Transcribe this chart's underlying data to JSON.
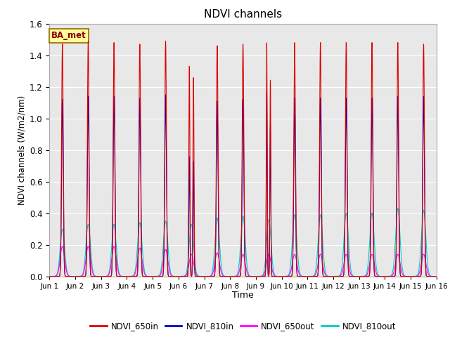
{
  "title": "NDVI channels",
  "xlabel": "Time",
  "ylabel": "NDVI channels (W/m2/nm)",
  "xlim_days": [
    0,
    15
  ],
  "ylim": [
    0.0,
    1.6
  ],
  "yticks": [
    0.0,
    0.2,
    0.4,
    0.6,
    0.8,
    1.0,
    1.2,
    1.4,
    1.6
  ],
  "xtick_labels": [
    "Jun 1",
    "Jun 2",
    "Jun 3",
    "Jun 4",
    "Jun 5",
    "Jun 6",
    "Jun 7",
    "Jun 8",
    "Jun 9",
    "Jun 10",
    "Jun 11",
    "Jun 12",
    "Jun 13",
    "Jun 14",
    "Jun 15",
    "Jun 16"
  ],
  "color_650in": "#dd0000",
  "color_810in": "#0000cc",
  "color_650out": "#ff00ff",
  "color_810out": "#00cccc",
  "lw_in": 0.8,
  "lw_out": 0.8,
  "bg_color": "#e8e8e8",
  "annotation_text": "BA_met",
  "annotation_bg": "#ffff99",
  "annotation_border": "#996600",
  "peak_650in": [
    1.47,
    1.49,
    1.48,
    1.47,
    1.49,
    1.43,
    1.46,
    1.47,
    1.48,
    1.48,
    1.48,
    1.48,
    1.48,
    1.48,
    1.47
  ],
  "peak_810in": [
    1.12,
    1.14,
    1.14,
    1.13,
    1.15,
    1.04,
    1.11,
    1.12,
    1.16,
    1.13,
    1.13,
    1.13,
    1.13,
    1.14,
    1.14
  ],
  "peak_650out": [
    0.19,
    0.19,
    0.19,
    0.18,
    0.17,
    0.14,
    0.15,
    0.14,
    0.14,
    0.14,
    0.14,
    0.14,
    0.14,
    0.14,
    0.14
  ],
  "peak_810out": [
    0.3,
    0.33,
    0.33,
    0.34,
    0.35,
    0.33,
    0.37,
    0.38,
    0.36,
    0.39,
    0.39,
    0.4,
    0.4,
    0.43,
    0.42
  ]
}
